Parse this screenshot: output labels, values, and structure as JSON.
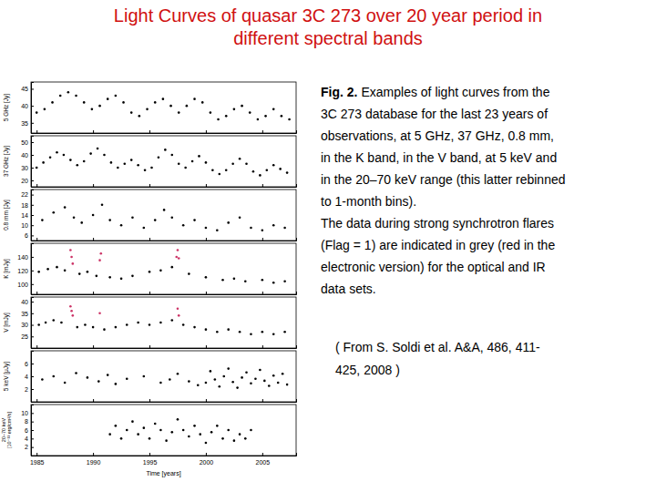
{
  "slide": {
    "title": [
      "Light Curves of quasar 3C 273 over 20 year period in",
      "different spectral bands"
    ],
    "caption": {
      "label": "Fig. 2.",
      "lines": [
        "Examples of light curves from the",
        "3C 273 database for the last 23 years of",
        "observations, at 5 GHz, 37 GHz, 0.8 mm,",
        "in the K band, in the V band, at 5 keV and",
        "in the 20–70 keV range (this latter rebinned",
        "to 1-month bins).",
        "The data during strong synchrotron flares",
        "(Flag = 1) are indicated in grey (red in the",
        "electronic version) for the optical and IR",
        "data sets."
      ]
    },
    "citation": [
      "( From S. Soldi et al. A&A, 486, 411-",
      "425, 2008 )"
    ]
  },
  "chart_data": [
    {
      "type": "scatter",
      "y_label": "5 GHz [Jy]",
      "xlim": [
        1984.5,
        2008
      ],
      "xticks": [
        1985,
        1990,
        1995,
        2000,
        2005
      ],
      "ylim": [
        32,
        47
      ],
      "yticks": [
        35,
        40,
        45
      ],
      "tick_labels": "y",
      "series": [
        {
          "color": "#000000",
          "marker": "dot",
          "x": [
            1985.0,
            1985.7,
            1986.4,
            1987.1,
            1987.8,
            1988.5,
            1989.2,
            1989.9,
            1990.6,
            1991.3,
            1992.0,
            1992.7,
            1993.4,
            1994.1,
            1994.8,
            1995.5,
            1996.2,
            1996.9,
            1997.6,
            1998.3,
            1999.0,
            1999.7,
            2000.4,
            2001.1,
            2001.8,
            2002.5,
            2003.2,
            2003.9,
            2004.6,
            2005.3,
            2006.0,
            2006.7,
            2007.4
          ],
          "values": [
            38,
            39,
            41,
            43,
            44,
            43,
            41,
            39,
            40,
            42,
            43,
            41,
            38,
            37,
            39,
            41,
            42,
            40,
            38,
            40,
            42,
            41,
            38,
            36,
            37,
            39,
            40,
            38,
            36,
            37,
            39,
            37,
            36
          ]
        }
      ]
    },
    {
      "type": "scatter",
      "y_label": "37 GHz [Jy]",
      "xlim": [
        1984.5,
        2008
      ],
      "xticks": [
        1985,
        1990,
        1995,
        2000,
        2005
      ],
      "ylim": [
        15,
        55
      ],
      "yticks": [
        20,
        30,
        40,
        50
      ],
      "tick_labels": "y",
      "series": [
        {
          "color": "#000000",
          "marker": "dot",
          "x": [
            1985.0,
            1985.6,
            1986.2,
            1986.8,
            1987.4,
            1988.0,
            1988.6,
            1989.2,
            1989.8,
            1990.4,
            1991.0,
            1991.6,
            1992.2,
            1992.8,
            1993.4,
            1994.0,
            1994.6,
            1995.2,
            1995.8,
            1996.4,
            1997.0,
            1997.6,
            1998.2,
            1998.8,
            1999.4,
            2000.0,
            2000.6,
            2001.2,
            2001.8,
            2002.4,
            2003.0,
            2003.6,
            2004.2,
            2004.8,
            2005.4,
            2006.0,
            2006.6,
            2007.2
          ],
          "values": [
            30,
            34,
            38,
            42,
            40,
            36,
            32,
            35,
            41,
            45,
            40,
            34,
            30,
            33,
            36,
            32,
            28,
            30,
            38,
            44,
            40,
            33,
            30,
            35,
            39,
            34,
            28,
            25,
            28,
            33,
            37,
            33,
            27,
            24,
            28,
            32,
            29,
            26
          ]
        }
      ]
    },
    {
      "type": "scatter",
      "y_label": "0.8 mm [Jy]",
      "xlim": [
        1984.5,
        2008
      ],
      "xticks": [
        1985,
        1990,
        1995,
        2000,
        2005
      ],
      "ylim": [
        4,
        24
      ],
      "yticks": [
        6,
        10,
        14,
        18,
        22
      ],
      "tick_labels": "y",
      "series": [
        {
          "color": "#000000",
          "marker": "dot",
          "x": [
            1985.5,
            1986.5,
            1987.5,
            1988.3,
            1989.0,
            1990.0,
            1990.8,
            1991.5,
            1992.5,
            1993.5,
            1994.5,
            1995.5,
            1996.3,
            1997.0,
            1998.0,
            1999.0,
            2000.0,
            2001.0,
            2002.0,
            2003.0,
            2004.0,
            2005.0,
            2006.0,
            2007.0
          ],
          "values": [
            12,
            15,
            17,
            13,
            11,
            14,
            18,
            12,
            10,
            13,
            9,
            12,
            16,
            13,
            10,
            12,
            9,
            8,
            11,
            13,
            9,
            8,
            10,
            9
          ]
        }
      ]
    },
    {
      "type": "scatter",
      "y_label": "K [mJy]",
      "xlim": [
        1984.5,
        2008
      ],
      "xticks": [
        1985,
        1990,
        1995,
        2000,
        2005
      ],
      "ylim": [
        85,
        160
      ],
      "yticks": [
        100,
        120,
        140
      ],
      "tick_labels": "y",
      "series": [
        {
          "color": "#000000",
          "marker": "dot",
          "x": [
            1985.2,
            1986.0,
            1986.8,
            1987.5,
            1988.8,
            1989.5,
            1990.3,
            1991.5,
            1992.5,
            1993.5,
            1995.0,
            1996.0,
            1997.0,
            1998.5,
            2000.0,
            2001.5,
            2002.5,
            2003.5,
            2005.0,
            2006.0,
            2007.0
          ],
          "values": [
            118,
            122,
            125,
            120,
            115,
            118,
            112,
            110,
            108,
            112,
            118,
            120,
            125,
            115,
            110,
            106,
            108,
            104,
            106,
            102,
            104
          ]
        },
        {
          "color": "#cc3366",
          "marker": "dot",
          "x": [
            1988.0,
            1988.1,
            1988.2,
            1990.6,
            1990.7,
            1997.4,
            1997.5,
            1997.6
          ],
          "values": [
            150,
            140,
            130,
            135,
            145,
            140,
            150,
            138
          ]
        }
      ]
    },
    {
      "type": "scatter",
      "y_label": "V [mJy]",
      "xlim": [
        1984.5,
        2008
      ],
      "xticks": [
        1985,
        1990,
        1995,
        2000,
        2005
      ],
      "ylim": [
        20,
        42
      ],
      "yticks": [
        25,
        30,
        35,
        40
      ],
      "tick_labels": "y",
      "series": [
        {
          "color": "#000000",
          "marker": "dot",
          "x": [
            1985.2,
            1985.8,
            1986.5,
            1987.2,
            1988.6,
            1989.3,
            1990.0,
            1991.0,
            1992.0,
            1993.0,
            1994.0,
            1995.0,
            1996.0,
            1997.0,
            1998.0,
            1999.0,
            2000.0,
            2001.0,
            2002.0,
            2003.0,
            2004.0,
            2005.0,
            2006.0,
            2007.0
          ],
          "values": [
            30,
            31,
            32,
            31,
            29,
            30,
            29,
            28,
            29,
            30,
            31,
            30,
            31,
            32,
            30,
            29,
            28,
            27,
            28,
            27,
            26,
            27,
            26,
            27
          ]
        },
        {
          "color": "#cc3366",
          "marker": "dot",
          "x": [
            1988.0,
            1988.1,
            1988.2,
            1990.6,
            1997.5,
            1997.6
          ],
          "values": [
            38,
            36,
            34,
            35,
            37,
            34
          ]
        }
      ]
    },
    {
      "type": "scatter",
      "y_label": "5 keV [μJy]",
      "xlim": [
        1984.5,
        2008
      ],
      "xticks": [
        1985,
        1990,
        1995,
        2000,
        2005
      ],
      "ylim": [
        0,
        8
      ],
      "yticks": [
        2,
        4,
        6
      ],
      "tick_labels": "y",
      "series": [
        {
          "color": "#000000",
          "marker": "dot",
          "x": [
            1985.5,
            1986.5,
            1987.5,
            1988.5,
            1989.5,
            1990.5,
            1991.3,
            1992.0,
            1993.0,
            1994.5,
            1996.0,
            1996.8,
            1997.5,
            1998.5,
            1999.3,
            2000.0,
            2000.4,
            2000.8,
            2001.2,
            2001.6,
            2002.0,
            2002.4,
            2002.8,
            2003.2,
            2003.6,
            2004.0,
            2004.4,
            2004.8,
            2005.2,
            2005.6,
            2006.0,
            2006.4,
            2006.8,
            2007.2
          ],
          "values": [
            3.5,
            4,
            3,
            4.5,
            3.8,
            3.2,
            4.2,
            2.8,
            3.6,
            4.0,
            3.0,
            3.5,
            4.4,
            3.2,
            2.6,
            3.0,
            4.8,
            3.5,
            2.4,
            4.0,
            5.2,
            3.1,
            2.2,
            3.8,
            4.6,
            2.9,
            3.6,
            5.0,
            3.3,
            2.5,
            4.1,
            3.0,
            4.4,
            2.7
          ]
        }
      ]
    },
    {
      "type": "scatter",
      "y_label": [
        "20–70 keV",
        "[10⁻¹¹ erg/cm²/s]"
      ],
      "x_label": "Time [years]",
      "xlim": [
        1984.5,
        2008
      ],
      "xticks": [
        1985,
        1990,
        1995,
        2000,
        2005
      ],
      "ylim": [
        0,
        12
      ],
      "yticks": [
        2,
        4,
        6,
        8,
        10
      ],
      "series": [
        {
          "color": "#000000",
          "marker": "dot",
          "x": [
            1991.5,
            1992.0,
            1992.5,
            1993.0,
            1993.5,
            1994.0,
            1994.5,
            1995.0,
            1995.5,
            1996.0,
            1996.5,
            1997.0,
            1997.5,
            1998.0,
            1998.5,
            1999.0,
            1999.5,
            2000.0,
            2000.5,
            2001.0,
            2001.5,
            2002.0,
            2002.5,
            2003.0,
            2003.5,
            2004.0
          ],
          "values": [
            5,
            7,
            4,
            6,
            8,
            5,
            6.5,
            4,
            7.5,
            6,
            3.5,
            5.5,
            8.5,
            6,
            4.5,
            7,
            5,
            3,
            5.5,
            7,
            4,
            6,
            3.5,
            5,
            4,
            6
          ]
        }
      ]
    }
  ]
}
